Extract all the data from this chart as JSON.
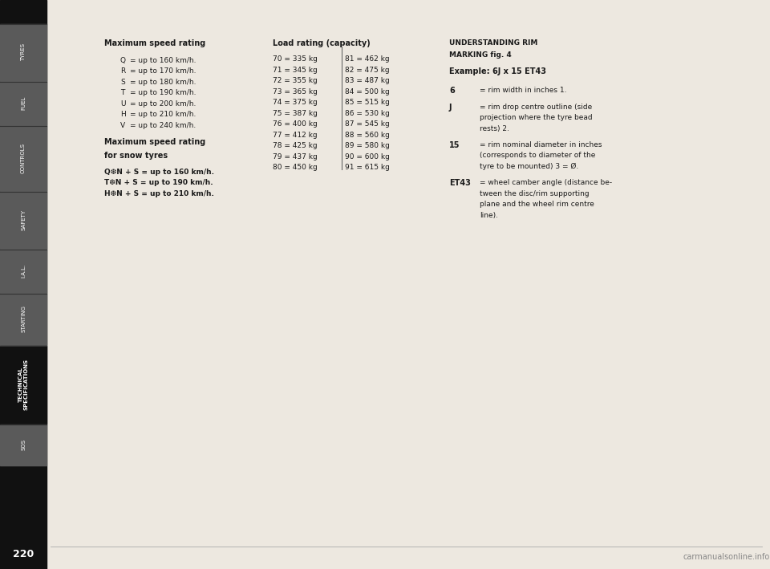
{
  "page_bg": "#ede8e0",
  "text_color": "#1a1a1a",
  "title_right": "UNDERSTANDING RIM\nMARKING fig. 4",
  "example_right": "Example: 6J x 15 ET43",
  "right_items": [
    [
      "6",
      "= rim width in inches 1."
    ],
    [
      "J",
      "= rim drop centre outline (side\nprojection where the tyre bead\nrests) 2."
    ],
    [
      "15",
      "= rim nominal diameter in inches\n(corresponds to diameter of the\ntyre to be mounted) 3 = Ø."
    ],
    [
      "ET43",
      "= wheel camber angle (distance be-\ntween the disc/rim supporting\nplane and the wheel rim centre\nline)."
    ]
  ],
  "speed_title": "Maximum speed rating",
  "speed_items": [
    [
      "Q",
      "= up to 160 km/h."
    ],
    [
      "R",
      "= up to 170 km/h."
    ],
    [
      "S",
      "= up to 180 km/h."
    ],
    [
      "T",
      "= up to 190 km/h."
    ],
    [
      "U",
      "= up to 200 km/h."
    ],
    [
      "H",
      "= up to 210 km/h."
    ],
    [
      "V",
      "= up to 240 km/h."
    ]
  ],
  "snow_title": "Maximum speed rating\nfor snow tyres",
  "snow_items": [
    "Q❆N + S = up to 160 km/h.",
    "T❆N + S = up to 190 km/h.",
    "H❆N + S = up to 210 km/h."
  ],
  "load_title": "Load rating (capacity)",
  "load_left": [
    "70 = 335 kg",
    "71 = 345 kg",
    "72 = 355 kg",
    "73 = 365 kg",
    "74 = 375 kg",
    "75 = 387 kg",
    "76 = 400 kg",
    "77 = 412 kg",
    "78 = 425 kg",
    "79 = 437 kg",
    "80 = 450 kg"
  ],
  "load_right": [
    "81 = 462 kg",
    "82 = 475 kg",
    "83 = 487 kg",
    "84 = 500 kg",
    "85 = 515 kg",
    "86 = 530 kg",
    "87 = 545 kg",
    "88 = 560 kg",
    "89 = 580 kg",
    "90 = 600 kg",
    "91 = 615 kg"
  ],
  "sidebar_sections": [
    {
      "label": "TYRES",
      "color": "#5a5a5a",
      "active": false
    },
    {
      "label": "FUEL",
      "color": "#5a5a5a",
      "active": false
    },
    {
      "label": "CONTROLS",
      "color": "#5a5a5a",
      "active": false
    },
    {
      "label": "SAFETY",
      "color": "#5a5a5a",
      "active": false
    },
    {
      "label": "I.A.L.",
      "color": "#5a5a5a",
      "active": false
    },
    {
      "label": "STARTING",
      "color": "#5a5a5a",
      "active": false
    },
    {
      "label": "TECHNICAL\nSPECIFICATIONS",
      "color": "#111111",
      "active": true
    },
    {
      "label": "SOS",
      "color": "#5a5a5a",
      "active": false
    }
  ],
  "page_number": "220",
  "watermark": "carmanualsonline.info"
}
